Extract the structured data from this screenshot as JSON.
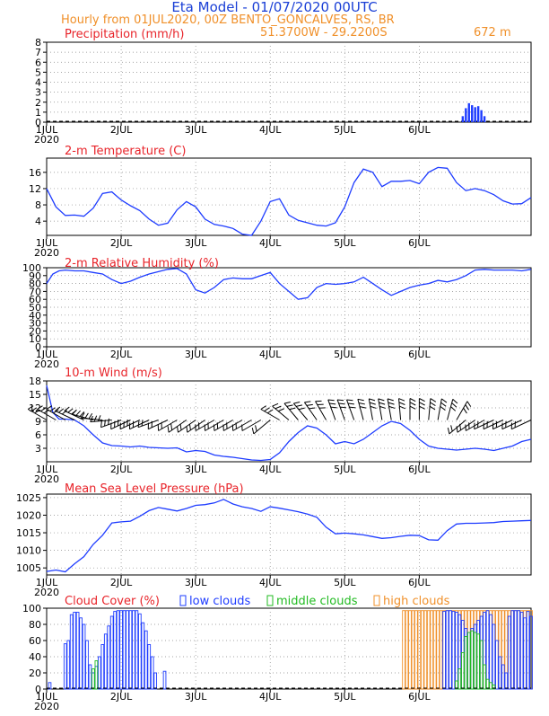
{
  "header": {
    "title": "Eta Model - 01/07/2020 00UTC",
    "subtitle": "Hourly from 01JUL2020, 00Z  BENTO_GONCALVES, RS, BR",
    "coords": "51.3700W - 29.2200S",
    "elevation": "672  m"
  },
  "colors": {
    "title": "#1a3fd6",
    "orange": "#f0902a",
    "red": "#e8242a",
    "blue": "#1e3cff",
    "green": "#22bb22"
  },
  "x_ticks": [
    "1JUL",
    "2JUL",
    "3JUL",
    "4JUL",
    "5JUL",
    "6JUL"
  ],
  "x_year": "2020",
  "cloud_legend": {
    "low": "low clouds",
    "middle": "middle clouds",
    "high": "high clouds"
  },
  "chart_data": [
    {
      "type": "bar",
      "title": "Precipitation (mm/h)",
      "ylim": [
        0,
        8
      ],
      "yticks": [
        0,
        1,
        2,
        3,
        4,
        5,
        6,
        7,
        8
      ],
      "x": [
        134,
        135,
        136,
        137,
        138,
        139,
        140,
        141
      ],
      "values": [
        0.6,
        1.4,
        1.9,
        1.7,
        1.5,
        1.6,
        1.2,
        0.6
      ]
    },
    {
      "type": "line",
      "title": "2-m Temperature (C)",
      "ylim": [
        0.5,
        19.5
      ],
      "yticks": [
        4,
        8,
        12,
        16
      ],
      "x": [
        0,
        3,
        6,
        9,
        12,
        15,
        18,
        21,
        24,
        27,
        30,
        33,
        36,
        39,
        42,
        45,
        48,
        51,
        54,
        57,
        60,
        63,
        66,
        69,
        72,
        75,
        78,
        81,
        84,
        87,
        90,
        93,
        96,
        99,
        102,
        105,
        108,
        111,
        114,
        117,
        120,
        123,
        126,
        129,
        132,
        135,
        138,
        141,
        144,
        147,
        150,
        153,
        156
      ],
      "values": [
        12,
        7.5,
        5.4,
        5.5,
        5.2,
        7.2,
        10.8,
        11.2,
        9.2,
        7.8,
        6.6,
        4.5,
        3.0,
        3.5,
        6.8,
        8.8,
        7.5,
        4.5,
        3.2,
        2.8,
        2.2,
        0.8,
        0.5,
        4.0,
        8.8,
        9.5,
        5.5,
        4.2,
        3.6,
        3.0,
        2.8,
        3.6,
        7.5,
        13.5,
        16.8,
        16.0,
        12.5,
        13.8,
        13.8,
        14.0,
        13.2,
        16.0,
        17.2,
        17.0,
        13.5,
        11.5,
        12.0,
        11.5,
        10.5,
        9.0,
        8.2,
        8.3,
        9.8
      ]
    },
    {
      "type": "line",
      "title": "2-m Relative Humidity (%)",
      "ylim": [
        0,
        100
      ],
      "yticks": [
        0,
        10,
        20,
        30,
        40,
        50,
        60,
        70,
        80,
        90,
        100
      ],
      "x": [
        0,
        2,
        4,
        6,
        9,
        12,
        15,
        18,
        21,
        24,
        27,
        30,
        33,
        36,
        39,
        42,
        45,
        48,
        51,
        54,
        57,
        60,
        63,
        66,
        69,
        72,
        75,
        78,
        81,
        84,
        87,
        90,
        93,
        96,
        99,
        102,
        105,
        108,
        111,
        114,
        117,
        120,
        123,
        126,
        129,
        132,
        135,
        138,
        141,
        144,
        147,
        150,
        153,
        156
      ],
      "values": [
        80,
        92,
        96,
        97,
        96,
        96,
        94,
        92,
        85,
        80,
        83,
        88,
        92,
        95,
        98,
        99,
        92,
        72,
        68,
        75,
        85,
        87,
        86,
        86,
        90,
        94,
        80,
        70,
        60,
        62,
        75,
        80,
        79,
        80,
        82,
        88,
        80,
        72,
        65,
        70,
        75,
        78,
        80,
        84,
        82,
        85,
        90,
        97,
        98,
        97,
        97,
        97,
        96,
        98
      ]
    },
    {
      "type": "line",
      "title": "10-m Wind (m/s)",
      "ylim": [
        0,
        18
      ],
      "yticks": [
        3,
        6,
        9,
        12,
        15,
        18
      ],
      "x": [
        0,
        2,
        4,
        6,
        9,
        12,
        15,
        18,
        21,
        24,
        27,
        30,
        33,
        36,
        39,
        42,
        45,
        48,
        51,
        54,
        57,
        60,
        63,
        66,
        69,
        72,
        75,
        78,
        81,
        84,
        87,
        90,
        93,
        96,
        99,
        102,
        105,
        108,
        111,
        114,
        117,
        120,
        123,
        126,
        129,
        132,
        135,
        138,
        141,
        144,
        147,
        150,
        153,
        156
      ],
      "values": [
        17,
        11,
        9.5,
        9.5,
        9.3,
        8.0,
        6.0,
        4.2,
        3.6,
        3.5,
        3.3,
        3.5,
        3.2,
        3.1,
        3.0,
        3.1,
        2.2,
        2.5,
        2.3,
        1.5,
        1.2,
        1.0,
        0.7,
        0.4,
        0.3,
        0.5,
        2.0,
        4.5,
        6.5,
        8.0,
        7.5,
        6.0,
        4.0,
        4.5,
        4.0,
        5.0,
        6.5,
        8.0,
        9.0,
        8.5,
        7.0,
        5.0,
        3.5,
        3.0,
        2.8,
        2.6,
        2.8,
        3.0,
        2.8,
        2.5,
        3.0,
        3.5,
        4.5,
        5.0
      ],
      "wind_barbs": [
        {
          "x": 0,
          "dir": 300,
          "speed": 6
        },
        {
          "x": 3,
          "dir": 300,
          "speed": 7
        },
        {
          "x": 6,
          "dir": 300,
          "speed": 7
        },
        {
          "x": 9,
          "dir": 295,
          "speed": 6
        },
        {
          "x": 12,
          "dir": 295,
          "speed": 6
        },
        {
          "x": 15,
          "dir": 285,
          "speed": 5
        },
        {
          "x": 18,
          "dir": 275,
          "speed": 5
        },
        {
          "x": 21,
          "dir": 265,
          "speed": 5
        },
        {
          "x": 24,
          "dir": 250,
          "speed": 5
        },
        {
          "x": 27,
          "dir": 245,
          "speed": 5
        },
        {
          "x": 30,
          "dir": 245,
          "speed": 5
        },
        {
          "x": 33,
          "dir": 245,
          "speed": 4
        },
        {
          "x": 36,
          "dir": 250,
          "speed": 4
        },
        {
          "x": 39,
          "dir": 245,
          "speed": 4
        },
        {
          "x": 42,
          "dir": 240,
          "speed": 4
        },
        {
          "x": 45,
          "dir": 235,
          "speed": 4
        },
        {
          "x": 48,
          "dir": 235,
          "speed": 3
        },
        {
          "x": 51,
          "dir": 235,
          "speed": 3
        },
        {
          "x": 54,
          "dir": 240,
          "speed": 3
        },
        {
          "x": 57,
          "dir": 240,
          "speed": 3
        },
        {
          "x": 60,
          "dir": 240,
          "speed": 3
        },
        {
          "x": 63,
          "dir": 240,
          "speed": 3
        },
        {
          "x": 66,
          "dir": 240,
          "speed": 3
        },
        {
          "x": 69,
          "dir": 240,
          "speed": 2
        },
        {
          "x": 72,
          "dir": 230,
          "speed": 3
        },
        {
          "x": 75,
          "dir": 300,
          "speed": 5
        },
        {
          "x": 78,
          "dir": 310,
          "speed": 6
        },
        {
          "x": 81,
          "dir": 320,
          "speed": 6
        },
        {
          "x": 84,
          "dir": 320,
          "speed": 6
        },
        {
          "x": 87,
          "dir": 325,
          "speed": 6
        },
        {
          "x": 90,
          "dir": 330,
          "speed": 6
        },
        {
          "x": 93,
          "dir": 340,
          "speed": 6
        },
        {
          "x": 96,
          "dir": 340,
          "speed": 6
        },
        {
          "x": 99,
          "dir": 340,
          "speed": 6
        },
        {
          "x": 102,
          "dir": 345,
          "speed": 6
        },
        {
          "x": 105,
          "dir": 350,
          "speed": 6
        },
        {
          "x": 108,
          "dir": 350,
          "speed": 6
        },
        {
          "x": 111,
          "dir": 350,
          "speed": 6
        },
        {
          "x": 114,
          "dir": 355,
          "speed": 6
        },
        {
          "x": 117,
          "dir": 0,
          "speed": 6
        },
        {
          "x": 120,
          "dir": 0,
          "speed": 6
        },
        {
          "x": 123,
          "dir": 5,
          "speed": 6
        },
        {
          "x": 126,
          "dir": 10,
          "speed": 6
        },
        {
          "x": 129,
          "dir": 15,
          "speed": 6
        },
        {
          "x": 132,
          "dir": 30,
          "speed": 5
        },
        {
          "x": 135,
          "dir": 230,
          "speed": 4
        },
        {
          "x": 138,
          "dir": 235,
          "speed": 4
        },
        {
          "x": 141,
          "dir": 240,
          "speed": 4
        },
        {
          "x": 144,
          "dir": 245,
          "speed": 4
        },
        {
          "x": 147,
          "dir": 245,
          "speed": 4
        },
        {
          "x": 150,
          "dir": 245,
          "speed": 4
        },
        {
          "x": 153,
          "dir": 245,
          "speed": 4
        },
        {
          "x": 156,
          "dir": 245,
          "speed": 4
        }
      ]
    },
    {
      "type": "line",
      "title": "Mean Sea Level Pressure (hPa)",
      "ylim": [
        1003,
        1026
      ],
      "yticks": [
        1005,
        1010,
        1015,
        1020,
        1025
      ],
      "x": [
        0,
        3,
        6,
        9,
        12,
        15,
        18,
        21,
        24,
        27,
        30,
        33,
        36,
        39,
        42,
        45,
        48,
        51,
        54,
        57,
        60,
        63,
        66,
        69,
        72,
        75,
        78,
        81,
        84,
        87,
        90,
        93,
        96,
        99,
        102,
        105,
        108,
        111,
        114,
        117,
        120,
        123,
        126,
        129,
        132,
        135,
        138,
        141,
        144,
        147,
        150,
        153,
        156
      ],
      "values": [
        1004,
        1004.4,
        1003.9,
        1006.2,
        1008.2,
        1011.7,
        1014.3,
        1017.8,
        1018.1,
        1018.3,
        1019.7,
        1021.3,
        1022.2,
        1021.7,
        1021.2,
        1021.9,
        1022.8,
        1023.0,
        1023.5,
        1024.5,
        1023.2,
        1022.4,
        1021.9,
        1021.1,
        1022.4,
        1022.0,
        1021.5,
        1021.0,
        1020.3,
        1019.4,
        1016.6,
        1014.7,
        1014.9,
        1014.7,
        1014.4,
        1013.9,
        1013.4,
        1013.6,
        1014.0,
        1014.3,
        1014.2,
        1013.0,
        1012.9,
        1015.6,
        1017.5,
        1017.7,
        1017.7,
        1017.8,
        1017.9,
        1018.2,
        1018.3,
        1018.4,
        1018.5
      ],
      "xlabel": "",
      "ylabel": ""
    },
    {
      "type": "bar",
      "title": "Cloud Cover (%)",
      "ylim": [
        0,
        100
      ],
      "yticks": [
        0,
        20,
        40,
        60,
        80,
        100
      ],
      "series": [
        {
          "name": "low clouds",
          "x": [
            1,
            6,
            7,
            8,
            9,
            10,
            11,
            12,
            13,
            14,
            15,
            16,
            17,
            18,
            19,
            20,
            21,
            22,
            23,
            24,
            25,
            26,
            27,
            28,
            29,
            30,
            31,
            32,
            33,
            34,
            35,
            38,
            128,
            129,
            130,
            131,
            132,
            133,
            134,
            135,
            136,
            137,
            138,
            139,
            140,
            141,
            142,
            143,
            144,
            145,
            146,
            147,
            148,
            149,
            150,
            151,
            152,
            153,
            154,
            155,
            156
          ],
          "values": [
            8,
            56,
            60,
            92,
            95,
            95,
            88,
            80,
            60,
            30,
            20,
            28,
            40,
            55,
            68,
            78,
            90,
            96,
            97,
            97,
            97,
            97,
            97,
            97,
            97,
            93,
            82,
            72,
            55,
            40,
            20,
            22,
            96,
            97,
            97,
            96,
            95,
            92,
            85,
            75,
            70,
            75,
            80,
            85,
            90,
            95,
            97,
            92,
            80,
            60,
            40,
            30,
            20,
            90,
            97,
            97,
            97,
            95,
            88,
            96,
            90
          ]
        },
        {
          "name": "middle clouds",
          "x": [
            15,
            16,
            132,
            133,
            134,
            135,
            136,
            137,
            138,
            139,
            140,
            141,
            142,
            143,
            144
          ],
          "values": [
            25,
            35,
            10,
            25,
            45,
            65,
            70,
            72,
            70,
            68,
            60,
            30,
            12,
            8,
            5
          ]
        },
        {
          "name": "high clouds",
          "x": [
            115,
            116,
            117,
            118,
            119,
            120,
            121,
            122,
            123,
            124,
            125,
            126,
            127,
            128,
            129,
            130,
            131,
            132,
            133,
            134,
            135,
            136,
            137,
            138,
            139,
            140,
            141,
            142,
            143,
            144,
            145,
            146,
            147,
            148,
            149,
            150,
            151,
            152,
            153,
            154,
            155,
            156
          ],
          "values": [
            97,
            97,
            97,
            97,
            97,
            97,
            97,
            97,
            97,
            97,
            97,
            97,
            97,
            97,
            97,
            97,
            97,
            97,
            97,
            97,
            97,
            97,
            97,
            97,
            97,
            97,
            97,
            97,
            97,
            97,
            97,
            97,
            97,
            97,
            97,
            97,
            97,
            97,
            97,
            97,
            97,
            97
          ]
        }
      ]
    }
  ]
}
